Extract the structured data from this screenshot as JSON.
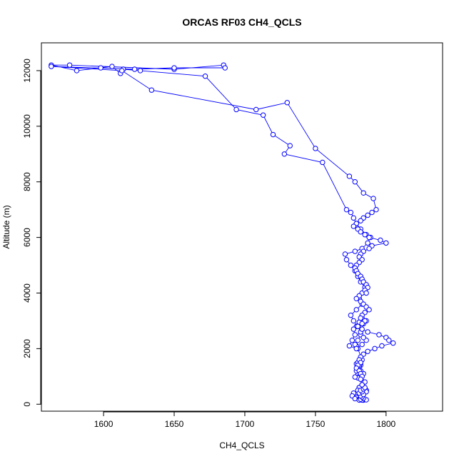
{
  "chart_data": {
    "type": "line",
    "title": "ORCAS RF03 CH4_QCLS",
    "xlabel": "CH4_QCLS",
    "ylabel": "Altitude (m)",
    "xlim": [
      1556,
      1840
    ],
    "ylim": [
      -250,
      13000
    ],
    "xticks": [
      1600,
      1650,
      1700,
      1750,
      1800
    ],
    "yticks": [
      0,
      2000,
      4000,
      6000,
      8000,
      10000,
      12000
    ],
    "grid": false,
    "marker": "open-circle",
    "color": "#0000ff",
    "series": [
      {
        "x": [
          1784,
          1782,
          1783,
          1781,
          1784,
          1782,
          1786,
          1781,
          1783,
          1784,
          1782,
          1786,
          1781,
          1784,
          1782,
          1783,
          1780,
          1782,
          1784,
          1781,
          1779,
          1780,
          1782,
          1781,
          1782,
          1779,
          1781,
          1780,
          1778,
          1782,
          1781,
          1783,
          1780,
          1779,
          1778,
          1780,
          1782,
          1784,
          1786,
          1783,
          1781,
          1779,
          1777,
          1778,
          1776,
          1774,
          1779,
          1783,
          1786,
          1784,
          1782,
          1780,
          1777,
          1775,
          1779,
          1783,
          1781,
          1783,
          1785,
          1782,
          1780,
          1778,
          1775,
          1772,
          1771,
          1778,
          1783,
          1787,
          1789,
          1786,
          1782,
          1779,
          1777,
          1775,
          1772,
          1755,
          1728,
          1732,
          1720,
          1713,
          1694,
          1672,
          1626,
          1614,
          1612,
          1606,
          1598,
          1581,
          1563,
          1576,
          1650,
          1685,
          1686,
          1650,
          1622,
          1563,
          1613,
          1634,
          1708,
          1730,
          1750,
          1774,
          1778,
          1784,
          1791,
          1793,
          1790,
          1787,
          1784,
          1782,
          1779,
          1777,
          1780,
          1782,
          1785,
          1788,
          1796,
          1800,
          1790,
          1788,
          1784,
          1782,
          1781,
          1783,
          1781,
          1779,
          1778,
          1779,
          1780,
          1782,
          1783,
          1784,
          1786,
          1787,
          1785,
          1786,
          1781,
          1779,
          1782,
          1784,
          1786,
          1788,
          1785,
          1783,
          1782,
          1785,
          1783,
          1780,
          1783,
          1787,
          1795,
          1800,
          1802,
          1805,
          1797,
          1792,
          1787,
          1784,
          1782,
          1781,
          1782,
          1780,
          1779,
          1781,
          1782,
          1783,
          1782,
          1785,
          1783,
          1781,
          1780,
          1777,
          1776,
          1779,
          1778,
          1781,
          1784,
          1786,
          1783,
          1781,
          1782,
          1784,
          1783,
          1782,
          1784,
          1781,
          1783,
          1782,
          1784,
          1785,
          1783
        ],
        "y": [
          150,
          170,
          300,
          450,
          500,
          600,
          500,
          350,
          180,
          150,
          300,
          450,
          600,
          800,
          950,
          1000,
          1050,
          980,
          1100,
          1200,
          1450,
          1500,
          1400,
          1350,
          1480,
          1200,
          1000,
          950,
          980,
          1200,
          1400,
          1600,
          2000,
          2100,
          2150,
          2300,
          2500,
          2900,
          3000,
          3100,
          2950,
          2800,
          2700,
          2500,
          2300,
          2100,
          2000,
          2150,
          2300,
          2400,
          2600,
          2800,
          3000,
          3200,
          3400,
          3600,
          3800,
          4000,
          4200,
          4400,
          4600,
          4800,
          5000,
          5200,
          5400,
          5500,
          5600,
          5800,
          6000,
          6100,
          6300,
          6500,
          6700,
          6900,
          7000,
          8700,
          9000,
          9300,
          9700,
          10400,
          10600,
          11800,
          12000,
          12050,
          11900,
          12150,
          12100,
          12000,
          12200,
          12200,
          12050,
          12200,
          12100,
          12100,
          12050,
          12150,
          12000,
          11300,
          10600,
          10850,
          9200,
          8200,
          8000,
          7600,
          7400,
          7000,
          6900,
          6800,
          6700,
          6600,
          6500,
          6400,
          6300,
          6200,
          6100,
          6000,
          5900,
          5800,
          5700,
          5600,
          5500,
          5400,
          5300,
          5200,
          5100,
          5000,
          4900,
          4800,
          4700,
          4600,
          4500,
          4400,
          4300,
          4200,
          4100,
          4000,
          3900,
          3800,
          3700,
          3600,
          3500,
          3400,
          3300,
          3200,
          3100,
          3000,
          2900,
          2800,
          2700,
          2600,
          2500,
          2400,
          2300,
          2200,
          2100,
          2000,
          1900,
          1800,
          1700,
          1600,
          1500,
          1400,
          1300,
          1200,
          1100,
          1000,
          900,
          800,
          700,
          600,
          500,
          400,
          300,
          250,
          200,
          180,
          170,
          160,
          150,
          150,
          180,
          220,
          260,
          300,
          350,
          400,
          450,
          500,
          550,
          600,
          700
        ],
        "rows_note_absent": true
      }
    ]
  }
}
